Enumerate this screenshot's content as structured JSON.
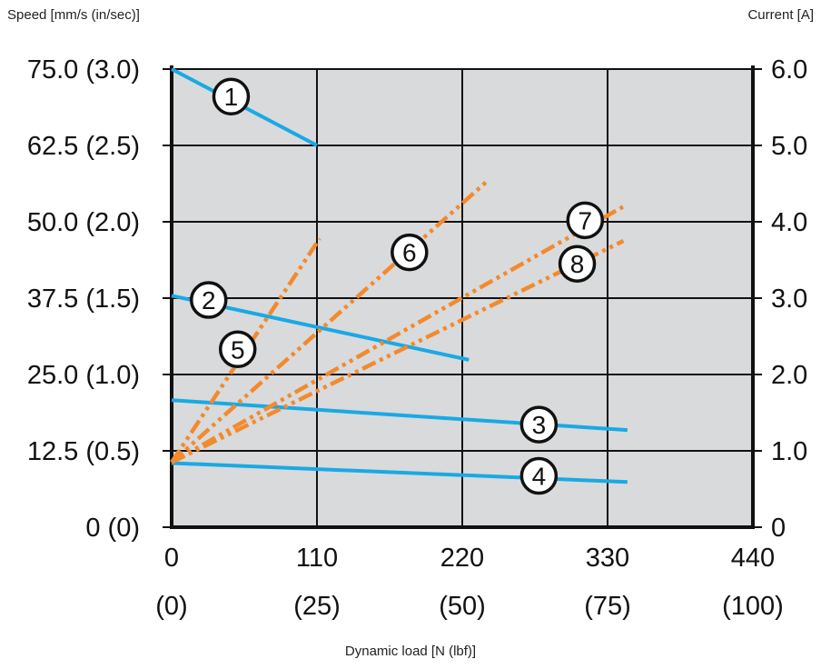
{
  "chart_data": {
    "type": "line",
    "ylabel_left": "Speed [mm/s (in/sec)]",
    "ylabel_right": "Current [A]",
    "xlabel": "Dynamic load [N (lbf)]",
    "xlim": [
      0,
      440
    ],
    "ylim_left": [
      0,
      75
    ],
    "ylim_right": [
      0,
      6
    ],
    "x_ticks": [
      {
        "value": 0,
        "label": "0",
        "sublabel": "(0)"
      },
      {
        "value": 110,
        "label": "110",
        "sublabel": "(25)"
      },
      {
        "value": 220,
        "label": "220",
        "sublabel": "(50)"
      },
      {
        "value": 330,
        "label": "330",
        "sublabel": "(75)"
      },
      {
        "value": 440,
        "label": "440",
        "sublabel": "(100)"
      }
    ],
    "y_left_ticks": [
      {
        "value": 0,
        "label": "0 (0)"
      },
      {
        "value": 12.5,
        "label": "12.5 (0.5)"
      },
      {
        "value": 25,
        "label": "25.0 (1.0)"
      },
      {
        "value": 37.5,
        "label": "37.5 (1.5)"
      },
      {
        "value": 50,
        "label": "50.0 (2.0)"
      },
      {
        "value": 62.5,
        "label": "62.5 (2.5)"
      },
      {
        "value": 75,
        "label": "75.0 (3.0)"
      }
    ],
    "y_right_ticks": [
      {
        "value": 0,
        "label": "0"
      },
      {
        "value": 1,
        "label": "1.0"
      },
      {
        "value": 2,
        "label": "2.0"
      },
      {
        "value": 3,
        "label": "3.0"
      },
      {
        "value": 4,
        "label": "4.0"
      },
      {
        "value": 5,
        "label": "5.0"
      },
      {
        "value": 6,
        "label": "6.0"
      }
    ],
    "grid": true,
    "plot_background": "#d9dadb",
    "speed_color": "#19a9e5",
    "current_color": "#f28a2e",
    "series": [
      {
        "marker": "1",
        "kind": "speed",
        "x": [
          0,
          110
        ],
        "y": [
          75,
          62.5
        ],
        "label_at": [
          45,
          70.5
        ]
      },
      {
        "marker": "2",
        "kind": "speed",
        "x": [
          0,
          225
        ],
        "y": [
          37.9,
          27.4
        ],
        "label_at": [
          28,
          37.2
        ]
      },
      {
        "marker": "3",
        "kind": "speed",
        "x": [
          0,
          345
        ],
        "y": [
          20.8,
          15.9
        ],
        "label_at": [
          278,
          16.8
        ]
      },
      {
        "marker": "4",
        "kind": "speed",
        "x": [
          0,
          345
        ],
        "y": [
          10.5,
          7.4
        ],
        "label_at": [
          278,
          8.4
        ]
      },
      {
        "marker": "5",
        "kind": "current",
        "x": [
          0,
          112
        ],
        "y": [
          0.85,
          3.78
        ],
        "label_at": [
          50,
          2.33
        ]
      },
      {
        "marker": "6",
        "kind": "current",
        "x": [
          0,
          240
        ],
        "y": [
          0.85,
          4.55
        ],
        "label_at": [
          180,
          3.6
        ]
      },
      {
        "marker": "7",
        "kind": "current",
        "x": [
          0,
          342
        ],
        "y": [
          0.85,
          4.2
        ],
        "label_at": [
          313,
          4.02
        ]
      },
      {
        "marker": "8",
        "kind": "current",
        "x": [
          0,
          342
        ],
        "y": [
          0.85,
          3.75
        ],
        "label_at": [
          307,
          3.45
        ]
      }
    ]
  }
}
